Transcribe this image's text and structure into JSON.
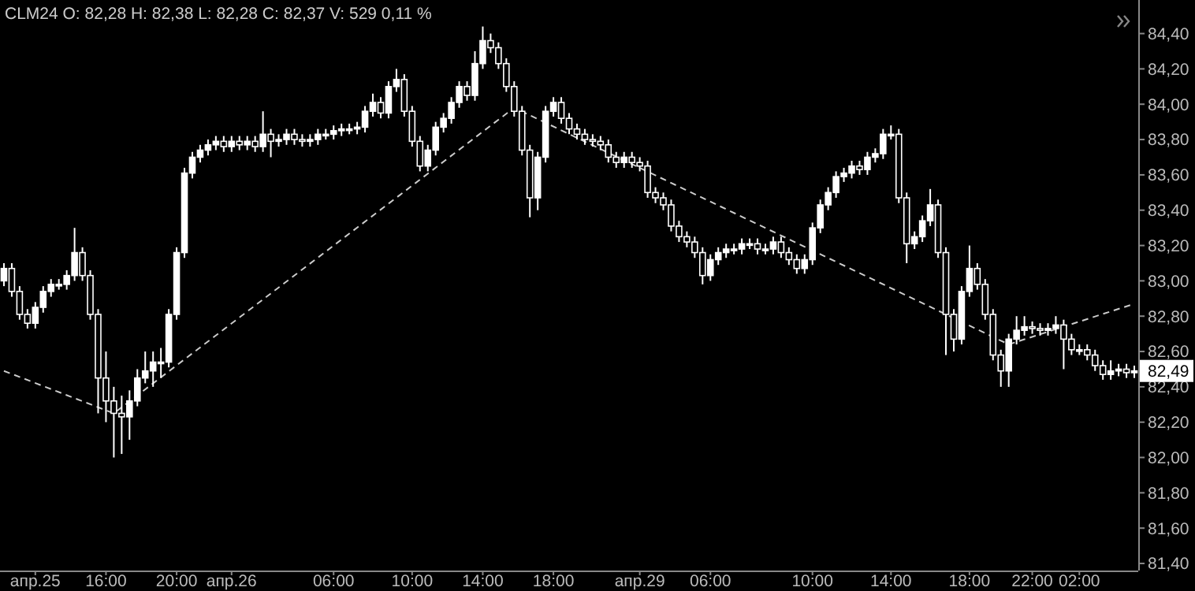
{
  "chart_data": {
    "type": "candlestick",
    "color": "#ffffff",
    "categories": [
      null,
      null,
      null,
      null,
      "апр.25",
      null,
      null,
      null,
      null,
      null,
      null,
      null,
      null,
      "16:00",
      null,
      null,
      null,
      null,
      null,
      null,
      null,
      null,
      "20:00",
      null,
      null,
      null,
      null,
      null,
      null,
      "апр.26",
      null,
      null,
      null,
      null,
      null,
      null,
      null,
      null,
      null,
      null,
      null,
      null,
      "06:00",
      null,
      null,
      null,
      null,
      null,
      null,
      null,
      null,
      null,
      "10:00",
      null,
      null,
      null,
      null,
      null,
      null,
      null,
      null,
      "14:00",
      null,
      null,
      null,
      null,
      null,
      null,
      null,
      null,
      "18:00",
      null,
      null,
      null,
      null,
      null,
      null,
      null,
      null,
      null,
      null,
      "апр.29",
      null,
      null,
      null,
      null,
      null,
      null,
      null,
      null,
      "06:00",
      null,
      null,
      null,
      null,
      null,
      null,
      null,
      null,
      null,
      null,
      null,
      null,
      "10:00",
      null,
      null,
      null,
      null,
      null,
      null,
      null,
      null,
      null,
      "14:00",
      null,
      null,
      null,
      null,
      null,
      null,
      null,
      null,
      null,
      "18:00",
      null,
      null,
      null,
      null,
      null,
      null,
      null,
      "22:00",
      null,
      null,
      null,
      null,
      null,
      "02:00",
      null,
      null,
      null,
      null,
      null,
      null,
      null
    ],
    "ohlc": [
      [
        83.0,
        83.1,
        82.97,
        83.07
      ],
      [
        83.07,
        83.1,
        82.91,
        82.94
      ],
      [
        82.94,
        82.97,
        82.78,
        82.81
      ],
      [
        82.81,
        82.84,
        82.73,
        82.76
      ],
      [
        82.76,
        82.88,
        82.73,
        82.85
      ],
      [
        82.85,
        82.97,
        82.82,
        82.94
      ],
      [
        82.94,
        83.01,
        82.91,
        82.98
      ],
      [
        82.98,
        83.01,
        82.95,
        82.98
      ],
      [
        82.98,
        83.06,
        82.95,
        83.03
      ],
      [
        83.03,
        83.3,
        83.0,
        83.16
      ],
      [
        83.16,
        83.19,
        83.0,
        83.03
      ],
      [
        83.03,
        83.06,
        82.78,
        82.81
      ],
      [
        82.81,
        82.84,
        82.25,
        82.45
      ],
      [
        82.45,
        82.6,
        82.2,
        82.32
      ],
      [
        82.32,
        82.4,
        82.0,
        82.25
      ],
      [
        82.25,
        82.35,
        82.02,
        82.23
      ],
      [
        82.23,
        82.38,
        82.1,
        82.32
      ],
      [
        82.32,
        82.5,
        82.29,
        82.45
      ],
      [
        82.45,
        82.6,
        82.42,
        82.49
      ],
      [
        82.49,
        82.6,
        82.4,
        82.54
      ],
      [
        82.54,
        82.62,
        82.45,
        82.54
      ],
      [
        82.54,
        82.84,
        82.51,
        82.81
      ],
      [
        82.81,
        83.19,
        82.78,
        83.16
      ],
      [
        83.16,
        83.64,
        83.13,
        83.61
      ],
      [
        83.61,
        83.73,
        83.58,
        83.7
      ],
      [
        83.7,
        83.77,
        83.67,
        83.74
      ],
      [
        83.74,
        83.8,
        83.71,
        83.77
      ],
      [
        83.77,
        83.82,
        83.74,
        83.79
      ],
      [
        83.79,
        83.82,
        83.73,
        83.76
      ],
      [
        83.76,
        83.82,
        83.73,
        83.79
      ],
      [
        83.79,
        83.82,
        83.74,
        83.77
      ],
      [
        83.77,
        83.82,
        83.74,
        83.79
      ],
      [
        83.79,
        83.82,
        83.73,
        83.76
      ],
      [
        83.76,
        83.96,
        83.73,
        83.83
      ],
      [
        83.83,
        83.86,
        83.7,
        83.79
      ],
      [
        83.79,
        83.83,
        83.76,
        83.8
      ],
      [
        83.8,
        83.86,
        83.77,
        83.83
      ],
      [
        83.83,
        83.86,
        83.77,
        83.8
      ],
      [
        83.8,
        83.83,
        83.76,
        83.79
      ],
      [
        83.79,
        83.83,
        83.76,
        83.8
      ],
      [
        83.8,
        83.86,
        83.77,
        83.83
      ],
      [
        83.83,
        83.86,
        83.8,
        83.83
      ],
      [
        83.83,
        83.88,
        83.8,
        83.85
      ],
      [
        83.85,
        83.89,
        83.82,
        83.86
      ],
      [
        83.86,
        83.89,
        83.83,
        83.86
      ],
      [
        83.86,
        83.9,
        83.83,
        83.87
      ],
      [
        83.87,
        83.99,
        83.84,
        83.96
      ],
      [
        83.96,
        84.06,
        83.93,
        84.01
      ],
      [
        84.01,
        84.04,
        83.92,
        83.95
      ],
      [
        83.95,
        84.13,
        83.92,
        84.1
      ],
      [
        84.1,
        84.2,
        84.07,
        84.14
      ],
      [
        84.14,
        84.17,
        83.93,
        83.96
      ],
      [
        83.96,
        83.99,
        83.76,
        83.79
      ],
      [
        83.79,
        83.82,
        83.62,
        83.65
      ],
      [
        83.65,
        83.77,
        83.62,
        83.74
      ],
      [
        83.74,
        83.9,
        83.71,
        83.87
      ],
      [
        83.87,
        83.95,
        83.84,
        83.92
      ],
      [
        83.92,
        84.04,
        83.89,
        84.01
      ],
      [
        84.01,
        84.13,
        83.98,
        84.1
      ],
      [
        84.1,
        84.13,
        84.02,
        84.05
      ],
      [
        84.05,
        84.3,
        84.02,
        84.23
      ],
      [
        84.23,
        84.44,
        84.2,
        84.36
      ],
      [
        84.36,
        84.4,
        84.29,
        84.32
      ],
      [
        84.32,
        84.35,
        84.2,
        84.23
      ],
      [
        84.23,
        84.26,
        84.07,
        84.1
      ],
      [
        84.1,
        84.13,
        83.93,
        83.96
      ],
      [
        83.96,
        83.99,
        83.71,
        83.74
      ],
      [
        83.74,
        83.77,
        83.36,
        83.47
      ],
      [
        83.47,
        83.73,
        83.4,
        83.7
      ],
      [
        83.7,
        83.99,
        83.67,
        83.96
      ],
      [
        83.96,
        84.04,
        83.93,
        84.01
      ],
      [
        84.01,
        84.04,
        83.89,
        83.92
      ],
      [
        83.92,
        83.95,
        83.83,
        83.86
      ],
      [
        83.86,
        83.89,
        83.8,
        83.83
      ],
      [
        83.83,
        83.86,
        83.77,
        83.8
      ],
      [
        83.8,
        83.83,
        83.76,
        83.79
      ],
      [
        83.79,
        83.82,
        83.74,
        83.77
      ],
      [
        83.77,
        83.8,
        83.67,
        83.7
      ],
      [
        83.7,
        83.73,
        83.64,
        83.67
      ],
      [
        83.67,
        83.73,
        83.64,
        83.7
      ],
      [
        83.7,
        83.73,
        83.64,
        83.67
      ],
      [
        83.67,
        83.7,
        83.62,
        83.65
      ],
      [
        83.65,
        83.68,
        83.47,
        83.5
      ],
      [
        83.5,
        83.53,
        83.44,
        83.47
      ],
      [
        83.47,
        83.5,
        83.4,
        83.43
      ],
      [
        83.43,
        83.46,
        83.28,
        83.31
      ],
      [
        83.31,
        83.34,
        83.22,
        83.25
      ],
      [
        83.25,
        83.28,
        83.19,
        83.22
      ],
      [
        83.22,
        83.25,
        83.13,
        83.16
      ],
      [
        83.16,
        83.19,
        82.98,
        83.03
      ],
      [
        83.03,
        83.15,
        83.0,
        83.12
      ],
      [
        83.12,
        83.19,
        83.09,
        83.16
      ],
      [
        83.16,
        83.21,
        83.13,
        83.18
      ],
      [
        83.18,
        83.21,
        83.15,
        83.18
      ],
      [
        83.18,
        83.24,
        83.15,
        83.21
      ],
      [
        83.21,
        83.24,
        83.18,
        83.21
      ],
      [
        83.21,
        83.24,
        83.15,
        83.18
      ],
      [
        83.18,
        83.21,
        83.15,
        83.18
      ],
      [
        83.18,
        83.25,
        83.15,
        83.22
      ],
      [
        83.22,
        83.25,
        83.13,
        83.16
      ],
      [
        83.16,
        83.19,
        83.09,
        83.12
      ],
      [
        83.12,
        83.15,
        83.04,
        83.07
      ],
      [
        83.07,
        83.15,
        83.04,
        83.12
      ],
      [
        83.12,
        83.33,
        83.09,
        83.3
      ],
      [
        83.3,
        83.46,
        83.27,
        83.43
      ],
      [
        83.43,
        83.53,
        83.4,
        83.5
      ],
      [
        83.5,
        83.62,
        83.47,
        83.59
      ],
      [
        83.59,
        83.64,
        83.56,
        83.61
      ],
      [
        83.61,
        83.68,
        83.58,
        83.65
      ],
      [
        83.65,
        83.68,
        83.6,
        83.63
      ],
      [
        83.63,
        83.73,
        83.6,
        83.7
      ],
      [
        83.7,
        83.75,
        83.67,
        83.72
      ],
      [
        83.72,
        83.86,
        83.69,
        83.83
      ],
      [
        83.83,
        83.88,
        83.8,
        83.83
      ],
      [
        83.83,
        83.86,
        83.44,
        83.47
      ],
      [
        83.47,
        83.5,
        83.1,
        83.21
      ],
      [
        83.21,
        83.28,
        83.18,
        83.25
      ],
      [
        83.25,
        83.37,
        83.22,
        83.34
      ],
      [
        83.34,
        83.52,
        83.31,
        83.43
      ],
      [
        83.43,
        83.46,
        83.13,
        83.16
      ],
      [
        83.16,
        83.19,
        82.58,
        82.81
      ],
      [
        82.81,
        82.84,
        82.6,
        82.67
      ],
      [
        82.67,
        82.97,
        82.64,
        82.94
      ],
      [
        82.94,
        83.2,
        82.91,
        83.07
      ],
      [
        83.07,
        83.1,
        82.95,
        82.98
      ],
      [
        82.98,
        83.01,
        82.78,
        82.81
      ],
      [
        82.81,
        82.84,
        82.55,
        82.58
      ],
      [
        82.58,
        82.61,
        82.4,
        82.49
      ],
      [
        82.49,
        82.7,
        82.4,
        82.67
      ],
      [
        82.67,
        82.8,
        82.64,
        82.72
      ],
      [
        82.72,
        82.8,
        82.69,
        82.74
      ],
      [
        82.74,
        82.77,
        82.7,
        82.73
      ],
      [
        82.73,
        82.76,
        82.69,
        82.72
      ],
      [
        82.72,
        82.76,
        82.69,
        82.73
      ],
      [
        82.73,
        82.8,
        82.7,
        82.75
      ],
      [
        82.75,
        82.78,
        82.5,
        82.67
      ],
      [
        82.67,
        82.7,
        82.58,
        82.61
      ],
      [
        82.61,
        82.64,
        82.58,
        82.61
      ],
      [
        82.61,
        82.64,
        82.55,
        82.58
      ],
      [
        82.58,
        82.61,
        82.49,
        82.52
      ],
      [
        82.52,
        82.55,
        82.44,
        82.47
      ],
      [
        82.47,
        82.55,
        82.44,
        82.49
      ],
      [
        82.49,
        82.53,
        82.46,
        82.5
      ],
      [
        82.5,
        82.53,
        82.45,
        82.48
      ],
      [
        82.48,
        82.52,
        82.45,
        82.49
      ]
    ],
    "series": [
      {
        "type": "line",
        "color": "#cccccc",
        "line_style": "dashed",
        "values": [
          82.49,
          null,
          null,
          null,
          null,
          null,
          null,
          null,
          null,
          null,
          null,
          null,
          null,
          null,
          82.25,
          null,
          null,
          null,
          null,
          null,
          null,
          null,
          null,
          null,
          null,
          null,
          null,
          null,
          null,
          null,
          null,
          null,
          null,
          null,
          null,
          null,
          null,
          null,
          null,
          null,
          null,
          null,
          null,
          null,
          null,
          null,
          null,
          null,
          null,
          null,
          null,
          null,
          null,
          null,
          null,
          null,
          null,
          null,
          null,
          null,
          null,
          null,
          null,
          null,
          null,
          83.98,
          null,
          null,
          null,
          null,
          null,
          null,
          null,
          null,
          null,
          null,
          null,
          null,
          null,
          null,
          null,
          null,
          null,
          null,
          null,
          null,
          null,
          null,
          null,
          null,
          null,
          null,
          null,
          null,
          null,
          null,
          null,
          null,
          null,
          null,
          null,
          null,
          null,
          null,
          null,
          null,
          null,
          null,
          null,
          null,
          null,
          null,
          null,
          null,
          null,
          null,
          null,
          null,
          null,
          null,
          null,
          null,
          null,
          null,
          null,
          null,
          null,
          null,
          82.64,
          null,
          null,
          null,
          null,
          null,
          null,
          null,
          null,
          null,
          null,
          null,
          null,
          null,
          null,
          null,
          82.87
        ]
      }
    ],
    "ylim": [
      81.36,
      84.59
    ],
    "yticks": [
      {
        "value": 81.4,
        "label": "81,40"
      },
      {
        "value": 81.6,
        "label": "81,60"
      },
      {
        "value": 81.8,
        "label": "81,80"
      },
      {
        "value": 82.0,
        "label": "82,00"
      },
      {
        "value": 82.2,
        "label": "82,20"
      },
      {
        "value": 82.4,
        "label": "82,40"
      },
      {
        "value": 82.6,
        "label": "82,60"
      },
      {
        "value": 82.8,
        "label": "82,80"
      },
      {
        "value": 83.0,
        "label": "83,00"
      },
      {
        "value": 83.2,
        "label": "83,20"
      },
      {
        "value": 83.4,
        "label": "83,40"
      },
      {
        "value": 83.6,
        "label": "83,60"
      },
      {
        "value": 83.8,
        "label": "83,80"
      },
      {
        "value": 84.0,
        "label": "84,00"
      },
      {
        "value": 84.2,
        "label": "84,20"
      },
      {
        "value": 84.4,
        "label": "84,40"
      }
    ],
    "annotations": [
      "CLM24 O: 82,28 H: 82,38 L: 82,28 C: 82,37 V: 529 0,11 %",
      {
        "text": "82,49",
        "y": 82.49
      }
    ],
    "grid": false
  }
}
